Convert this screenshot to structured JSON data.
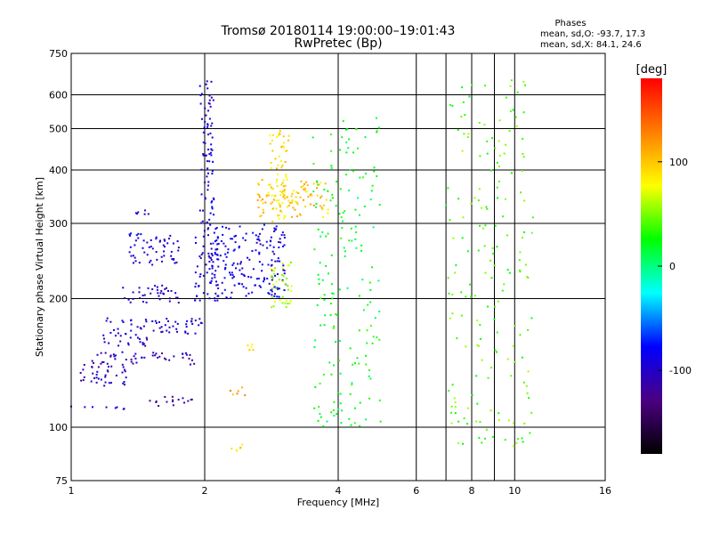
{
  "chart_data": {
    "type": "scatter",
    "title": "Tromsø 20180114 19:00:00–19:01:43",
    "subtitle": "RwPretec (Bp)",
    "xlabel": "Frequency [MHz]",
    "ylabel": "Stationary phase Virtual Height [km]",
    "x_scale": "log",
    "y_scale": "log",
    "xlim": [
      1,
      16
    ],
    "ylim": [
      75,
      750
    ],
    "x_ticks": [
      1,
      2,
      4,
      6,
      8,
      10,
      16
    ],
    "x_gridlines": [
      2,
      4,
      6,
      7,
      8,
      9,
      10
    ],
    "y_ticks": [
      75,
      100,
      200,
      300,
      400,
      500,
      600,
      750
    ],
    "y_gridlines": [
      100,
      200,
      300,
      400,
      500,
      600
    ],
    "grid": true,
    "colorbar": {
      "label": "[deg]",
      "range": [
        -180,
        180
      ],
      "ticks": [
        -100,
        0,
        100
      ],
      "colors": [
        "#000000",
        "#4b0082",
        "#0000ff",
        "#00ffff",
        "#00ff00",
        "#ffff00",
        "#ff7f00",
        "#ff0000"
      ]
    },
    "phase_stats": {
      "header": "Phases",
      "o_line": "mean, sd,O: -93.7, 17.3",
      "x_line": "mean, sd,X: 84.1, 24.6"
    },
    "series": [
      {
        "x": [
          1.0,
          1.4
        ],
        "y": [
          110,
          112
        ],
        "phase": -100
      },
      {
        "x": [
          1.05,
          1.35
        ],
        "y": [
          125,
          140
        ],
        "phase": -105
      },
      {
        "x": [
          1.1,
          1.9
        ],
        "y": [
          140,
          150
        ],
        "phase": -110
      },
      {
        "x": [
          1.15,
          1.5
        ],
        "y": [
          155,
          165
        ],
        "phase": -100
      },
      {
        "x": [
          1.2,
          2.0
        ],
        "y": [
          165,
          180
        ],
        "phase": -95
      },
      {
        "x": [
          1.3,
          1.75
        ],
        "y": [
          195,
          215
        ],
        "phase": -100
      },
      {
        "x": [
          1.35,
          1.75
        ],
        "y": [
          240,
          285
        ],
        "phase": -95
      },
      {
        "x": [
          1.4,
          1.5
        ],
        "y": [
          315,
          325
        ],
        "phase": -100
      },
      {
        "x": [
          1.5,
          1.9
        ],
        "y": [
          112,
          118
        ],
        "phase": -110
      },
      {
        "x": [
          1.9,
          2.15
        ],
        "y": [
          195,
          290
        ],
        "phase": -95
      },
      {
        "x": [
          1.95,
          2.1
        ],
        "y": [
          290,
          650
        ],
        "phase": -95
      },
      {
        "x": [
          2.05,
          3.05
        ],
        "y": [
          200,
          300
        ],
        "phase": -90
      },
      {
        "x": [
          2.8,
          3.1
        ],
        "y": [
          300,
          500
        ],
        "phase": 90
      },
      {
        "x": [
          2.8,
          3.15
        ],
        "y": [
          190,
          245
        ],
        "phase": 60
      },
      {
        "x": [
          2.25,
          2.5
        ],
        "y": [
          118,
          124
        ],
        "phase": 120
      },
      {
        "x": [
          2.3,
          2.5
        ],
        "y": [
          88,
          92
        ],
        "phase": 90
      },
      {
        "x": [
          2.5,
          2.6
        ],
        "y": [
          150,
          160
        ],
        "phase": 80
      },
      {
        "x": [
          2.6,
          3.8
        ],
        "y": [
          310,
          380
        ],
        "phase": 100
      },
      {
        "x": [
          3.5,
          5.0
        ],
        "y": [
          100,
          530
        ],
        "phase": 20
      },
      {
        "x": [
          7.0,
          11.0
        ],
        "y": [
          90,
          650
        ],
        "phase": 40
      }
    ]
  }
}
